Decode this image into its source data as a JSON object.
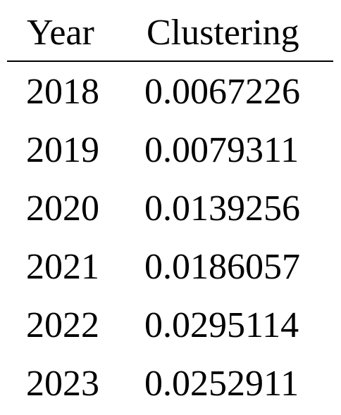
{
  "table": {
    "headers": {
      "year": "Year",
      "clustering": "Clustering"
    },
    "rows": [
      {
        "year": "2018",
        "clustering": "0.0067226"
      },
      {
        "year": "2019",
        "clustering": "0.0079311"
      },
      {
        "year": "2020",
        "clustering": "0.0139256"
      },
      {
        "year": "2021",
        "clustering": "0.0186057"
      },
      {
        "year": "2022",
        "clustering": "0.0295114"
      },
      {
        "year": "2023",
        "clustering": "0.0252911"
      }
    ]
  }
}
